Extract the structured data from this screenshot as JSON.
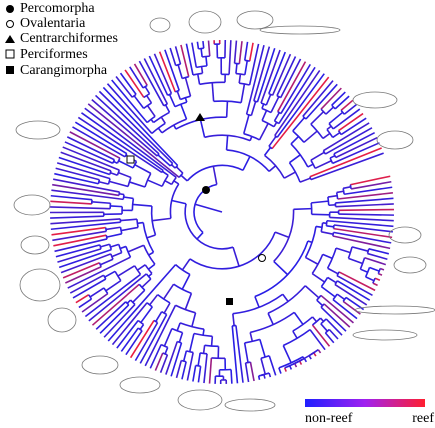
{
  "legend": {
    "entries": [
      {
        "marker": "filled-circle",
        "label": "Percomorpha"
      },
      {
        "marker": "open-circle",
        "label": "Ovalentaria"
      },
      {
        "marker": "triangle",
        "label": "Centrarchiformes"
      },
      {
        "marker": "open-square",
        "label": "Perciformes"
      },
      {
        "marker": "filled-square",
        "label": "Carangimorpha"
      }
    ]
  },
  "colorbar": {
    "low_label": "non-reef",
    "high_label": "reef"
  }
}
